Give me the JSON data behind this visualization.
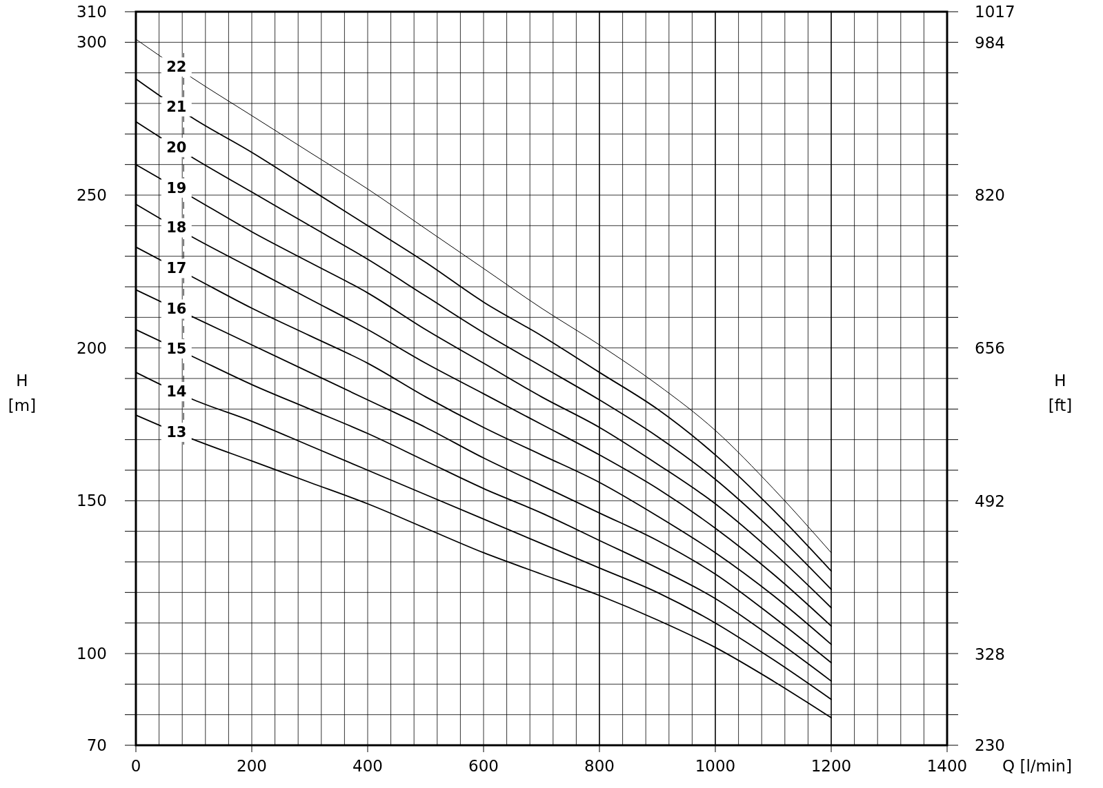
{
  "chart_data": {
    "type": "line",
    "xlabel": "Q [l/min]",
    "ylabel": "H [m]",
    "y2label": "H [ft]",
    "x": [
      0,
      100,
      200,
      300,
      400,
      500,
      600,
      700,
      800,
      900,
      1000,
      1100,
      1200
    ],
    "xlim": [
      0,
      1400
    ],
    "xticks": [
      0,
      {
        "value": 40,
        "label": null
      },
      {
        "value": 80,
        "label": null
      },
      {
        "value": 120,
        "label": null
      },
      {
        "value": 160,
        "label": null
      },
      200,
      {
        "value": 240,
        "label": null
      },
      {
        "value": 280,
        "label": null
      },
      {
        "value": 320,
        "label": null
      },
      {
        "value": 360,
        "label": null
      },
      400,
      {
        "value": 440,
        "label": null
      },
      {
        "value": 480,
        "label": null
      },
      {
        "value": 520,
        "label": null
      },
      {
        "value": 560,
        "label": null
      },
      600,
      {
        "value": 640,
        "label": null
      },
      {
        "value": 680,
        "label": null
      },
      {
        "value": 720,
        "label": null
      },
      {
        "value": 760,
        "label": null
      },
      800,
      {
        "value": 840,
        "label": null
      },
      {
        "value": 880,
        "label": null
      },
      {
        "value": 920,
        "label": null
      },
      {
        "value": 960,
        "label": null
      },
      1000,
      {
        "value": 1040,
        "label": null
      },
      {
        "value": 1080,
        "label": null
      },
      {
        "value": 1120,
        "label": null
      },
      {
        "value": 1160,
        "label": null
      },
      1200,
      {
        "value": 1240,
        "label": null
      },
      {
        "value": 1280,
        "label": null
      },
      {
        "value": 1320,
        "label": null
      },
      {
        "value": 1360,
        "label": null
      },
      1400
    ],
    "ylim": [
      70,
      310
    ],
    "yticks": [
      70,
      {
        "value": 80,
        "label": null
      },
      {
        "value": 90,
        "label": null
      },
      100,
      {
        "value": 110,
        "label": null
      },
      {
        "value": 120,
        "label": null
      },
      {
        "value": 130,
        "label": null
      },
      {
        "value": 140,
        "label": null
      },
      150,
      {
        "value": 160,
        "label": null
      },
      {
        "value": 170,
        "label": null
      },
      {
        "value": 180,
        "label": null
      },
      {
        "value": 190,
        "label": null
      },
      200,
      {
        "value": 210,
        "label": null
      },
      {
        "value": 220,
        "label": null
      },
      {
        "value": 230,
        "label": null
      },
      {
        "value": 240,
        "label": null
      },
      250,
      {
        "value": 260,
        "label": null
      },
      {
        "value": 270,
        "label": null
      },
      {
        "value": 280,
        "label": null
      },
      {
        "value": 290,
        "label": null
      },
      300,
      310
    ],
    "y2lim": [
      230,
      1017
    ],
    "y2ticks": [
      230,
      328,
      492,
      656,
      820,
      984,
      1017
    ],
    "grid": true,
    "legend": "left",
    "marker": "none",
    "line_style": "solid",
    "series": [
      {
        "name": "22",
        "color": "#000000",
        "values": [
          301,
          288,
          276,
          264,
          252,
          239,
          226,
          213,
          201,
          188,
          173,
          154,
          133
        ]
      },
      {
        "name": "21",
        "color": "#000000",
        "values": [
          288,
          275,
          264,
          252,
          240,
          228,
          215,
          204,
          192,
          180,
          165,
          147,
          127
        ]
      },
      {
        "name": "20",
        "color": "#000000",
        "values": [
          274,
          262,
          251,
          240,
          229,
          217,
          205,
          194,
          183,
          171,
          157,
          140,
          121
        ]
      },
      {
        "name": "19",
        "color": "#000000",
        "values": [
          260,
          249,
          238,
          228,
          218,
          206,
          195,
          184,
          174,
          162,
          149,
          133,
          115
        ]
      },
      {
        "name": "18",
        "color": "#000000",
        "values": [
          247,
          236,
          226,
          216,
          206,
          195,
          185,
          175,
          165,
          154,
          141,
          126,
          109
        ]
      },
      {
        "name": "17",
        "color": "#000000",
        "values": [
          233,
          223,
          213,
          204,
          195,
          184,
          174,
          165,
          156,
          145,
          133,
          119,
          103
        ]
      },
      {
        "name": "16",
        "color": "#000000",
        "values": [
          219,
          210,
          201,
          192,
          183,
          174,
          164,
          155,
          146,
          137,
          126,
          112,
          97
        ]
      },
      {
        "name": "15",
        "color": "#000000",
        "values": [
          206,
          197,
          188,
          180,
          172,
          163,
          154,
          146,
          137,
          128,
          118,
          105,
          91
        ]
      },
      {
        "name": "14",
        "color": "#000000",
        "values": [
          192,
          183,
          176,
          168,
          160,
          152,
          144,
          136,
          128,
          120,
          110,
          98,
          85
        ]
      },
      {
        "name": "13",
        "color": "#000000",
        "values": [
          178,
          170,
          163,
          156,
          149,
          141,
          133,
          126,
          119,
          111,
          102,
          91,
          79
        ]
      }
    ]
  }
}
